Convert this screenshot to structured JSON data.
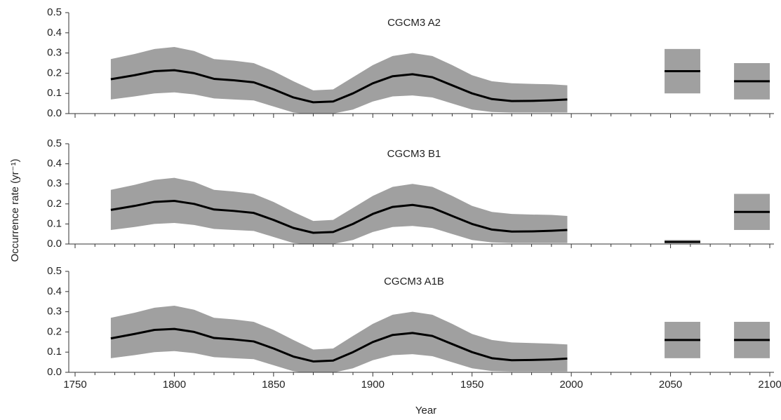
{
  "chart_data": [
    {
      "type": "line",
      "title": "CGCM3 A2",
      "x": [
        1768,
        1780,
        1790,
        1800,
        1810,
        1820,
        1830,
        1840,
        1850,
        1860,
        1870,
        1880,
        1890,
        1900,
        1910,
        1920,
        1930,
        1940,
        1950,
        1960,
        1970,
        1980,
        1990,
        1998
      ],
      "values": [
        0.17,
        0.19,
        0.21,
        0.215,
        0.2,
        0.172,
        0.165,
        0.155,
        0.12,
        0.08,
        0.056,
        0.06,
        0.1,
        0.15,
        0.185,
        0.195,
        0.18,
        0.14,
        0.1,
        0.072,
        0.062,
        0.063,
        0.066,
        0.07
      ],
      "upper": [
        0.27,
        0.295,
        0.32,
        0.33,
        0.31,
        0.27,
        0.262,
        0.25,
        0.21,
        0.16,
        0.115,
        0.12,
        0.18,
        0.24,
        0.285,
        0.3,
        0.285,
        0.24,
        0.19,
        0.16,
        0.15,
        0.147,
        0.145,
        0.14
      ],
      "lower": [
        0.07,
        0.085,
        0.1,
        0.105,
        0.095,
        0.075,
        0.07,
        0.065,
        0.035,
        0.005,
        -0.005,
        0,
        0.02,
        0.06,
        0.085,
        0.09,
        0.08,
        0.05,
        0.02,
        0.008,
        0.005,
        0.005,
        0.005,
        0.005
      ],
      "periods": [
        {
          "x": [
            2047,
            2065
          ],
          "value": 0.21,
          "lower": 0.1,
          "upper": 0.32
        },
        {
          "x": [
            2082,
            2100
          ],
          "value": 0.16,
          "lower": 0.07,
          "upper": 0.25
        }
      ],
      "color": "#000000",
      "band_color": "#a0a0a0",
      "xlim": [
        1750,
        2100
      ],
      "xticks": [
        1750,
        1800,
        1850,
        1900,
        1950,
        2000,
        2050,
        2100
      ],
      "xminorticks": [
        1760,
        1770,
        1780,
        1790,
        1810,
        1820,
        1830,
        1840,
        1860,
        1870,
        1880,
        1890,
        1910,
        1920,
        1930,
        1940,
        1960,
        1970,
        1980,
        1990,
        2010,
        2020,
        2030,
        2040,
        2060,
        2070,
        2080,
        2090
      ],
      "ylim": [
        0,
        0.5
      ],
      "yticks": [
        {
          "value": 0,
          "label": "0.0"
        },
        0.1,
        0.2,
        0.3,
        0.4,
        0.5
      ]
    },
    {
      "type": "line",
      "title": "CGCM3 B1",
      "ylabel": "Occurrence rate (yr⁻¹)",
      "x": [
        1768,
        1780,
        1790,
        1800,
        1810,
        1820,
        1830,
        1840,
        1850,
        1860,
        1870,
        1880,
        1890,
        1900,
        1910,
        1920,
        1930,
        1940,
        1950,
        1960,
        1970,
        1980,
        1990,
        1998
      ],
      "values": [
        0.17,
        0.19,
        0.21,
        0.215,
        0.2,
        0.172,
        0.165,
        0.155,
        0.12,
        0.08,
        0.056,
        0.06,
        0.1,
        0.15,
        0.185,
        0.195,
        0.18,
        0.14,
        0.1,
        0.072,
        0.062,
        0.063,
        0.066,
        0.07
      ],
      "upper": [
        0.27,
        0.295,
        0.32,
        0.33,
        0.31,
        0.27,
        0.262,
        0.25,
        0.21,
        0.16,
        0.115,
        0.12,
        0.18,
        0.24,
        0.285,
        0.3,
        0.285,
        0.24,
        0.19,
        0.16,
        0.15,
        0.147,
        0.145,
        0.14
      ],
      "lower": [
        0.07,
        0.085,
        0.1,
        0.105,
        0.095,
        0.075,
        0.07,
        0.065,
        0.035,
        0.005,
        -0.005,
        0,
        0.02,
        0.06,
        0.085,
        0.09,
        0.08,
        0.05,
        0.02,
        0.008,
        0.005,
        0.005,
        0.005,
        0.005
      ],
      "periods": [
        {
          "x": [
            2047,
            2065
          ],
          "value": 0.01,
          "lower": 0.005,
          "upper": 0.02
        },
        {
          "x": [
            2082,
            2100
          ],
          "value": 0.16,
          "lower": 0.07,
          "upper": 0.25
        }
      ],
      "color": "#000000",
      "band_color": "#a0a0a0",
      "xlim": [
        1750,
        2100
      ],
      "xticks": [
        1750,
        1800,
        1850,
        1900,
        1950,
        2000,
        2050,
        2100
      ],
      "xminorticks": [
        1760,
        1770,
        1780,
        1790,
        1810,
        1820,
        1830,
        1840,
        1860,
        1870,
        1880,
        1890,
        1910,
        1920,
        1930,
        1940,
        1960,
        1970,
        1980,
        1990,
        2010,
        2020,
        2030,
        2040,
        2060,
        2070,
        2080,
        2090
      ],
      "ylim": [
        0,
        0.5
      ],
      "yticks": [
        {
          "value": 0,
          "label": "0.0"
        },
        0.1,
        0.2,
        0.3,
        0.4,
        0.5
      ]
    },
    {
      "type": "line",
      "title": "CGCM3 A1B",
      "xlabel": "Year",
      "x": [
        1768,
        1780,
        1790,
        1800,
        1810,
        1820,
        1830,
        1840,
        1850,
        1860,
        1870,
        1880,
        1890,
        1900,
        1910,
        1920,
        1930,
        1940,
        1950,
        1960,
        1970,
        1980,
        1990,
        1998
      ],
      "values": [
        0.168,
        0.19,
        0.21,
        0.215,
        0.2,
        0.17,
        0.163,
        0.153,
        0.118,
        0.078,
        0.054,
        0.058,
        0.1,
        0.15,
        0.185,
        0.195,
        0.18,
        0.14,
        0.1,
        0.07,
        0.06,
        0.061,
        0.064,
        0.068
      ],
      "upper": [
        0.27,
        0.295,
        0.32,
        0.33,
        0.31,
        0.27,
        0.262,
        0.25,
        0.21,
        0.16,
        0.113,
        0.118,
        0.18,
        0.24,
        0.285,
        0.3,
        0.285,
        0.24,
        0.19,
        0.16,
        0.148,
        0.145,
        0.142,
        0.138
      ],
      "lower": [
        0.07,
        0.085,
        0.1,
        0.105,
        0.095,
        0.075,
        0.07,
        0.065,
        0.035,
        0.005,
        -0.007,
        -0.002,
        0.02,
        0.06,
        0.085,
        0.09,
        0.08,
        0.05,
        0.02,
        0.006,
        0.004,
        0.004,
        0.004,
        0.004
      ],
      "periods": [
        {
          "x": [
            2047,
            2065
          ],
          "value": 0.16,
          "lower": 0.07,
          "upper": 0.25
        },
        {
          "x": [
            2082,
            2100
          ],
          "value": 0.16,
          "lower": 0.07,
          "upper": 0.25
        }
      ],
      "color": "#000000",
      "band_color": "#a0a0a0",
      "xlim": [
        1750,
        2100
      ],
      "xticks": [
        1750,
        1800,
        1850,
        1900,
        1950,
        2000,
        2050,
        2100
      ],
      "xminorticks": [
        1760,
        1770,
        1780,
        1790,
        1810,
        1820,
        1830,
        1840,
        1860,
        1870,
        1880,
        1890,
        1910,
        1920,
        1930,
        1940,
        1960,
        1970,
        1980,
        1990,
        2010,
        2020,
        2030,
        2040,
        2060,
        2070,
        2080,
        2090
      ],
      "ylim": [
        0,
        0.5
      ],
      "yticks": [
        {
          "value": 0,
          "label": "0.0"
        },
        0.1,
        0.2,
        0.3,
        0.4,
        0.5
      ]
    }
  ]
}
